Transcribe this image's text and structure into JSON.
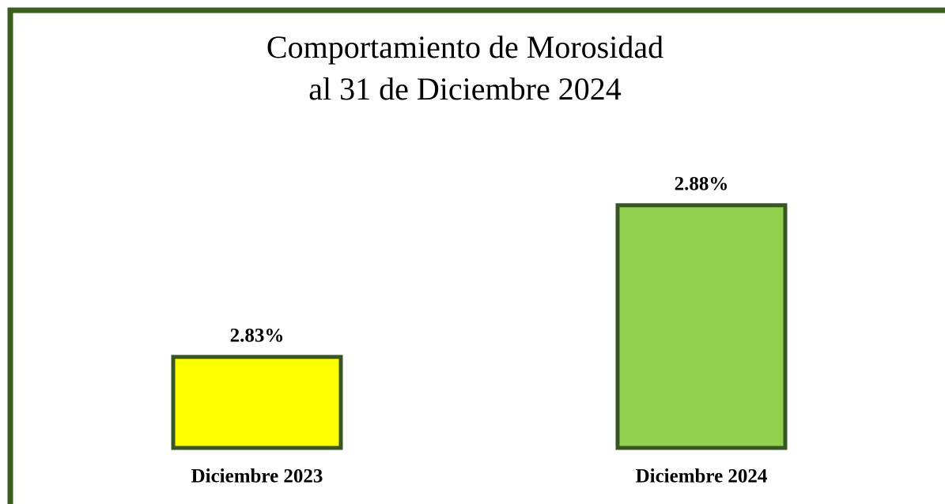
{
  "chart_data": {
    "type": "bar",
    "title": [
      "Comportamiento de Morosidad",
      "al 31 de Diciembre 2024"
    ],
    "categories": [
      "Diciembre 2023",
      "Diciembre 2024"
    ],
    "values": [
      2.83,
      2.88
    ],
    "value_labels": [
      "2.83%",
      "2.88%"
    ],
    "colors": [
      "#ffff00",
      "#92d050"
    ],
    "edge_color": "#375623",
    "ylim": [
      2.8,
      2.9
    ]
  }
}
